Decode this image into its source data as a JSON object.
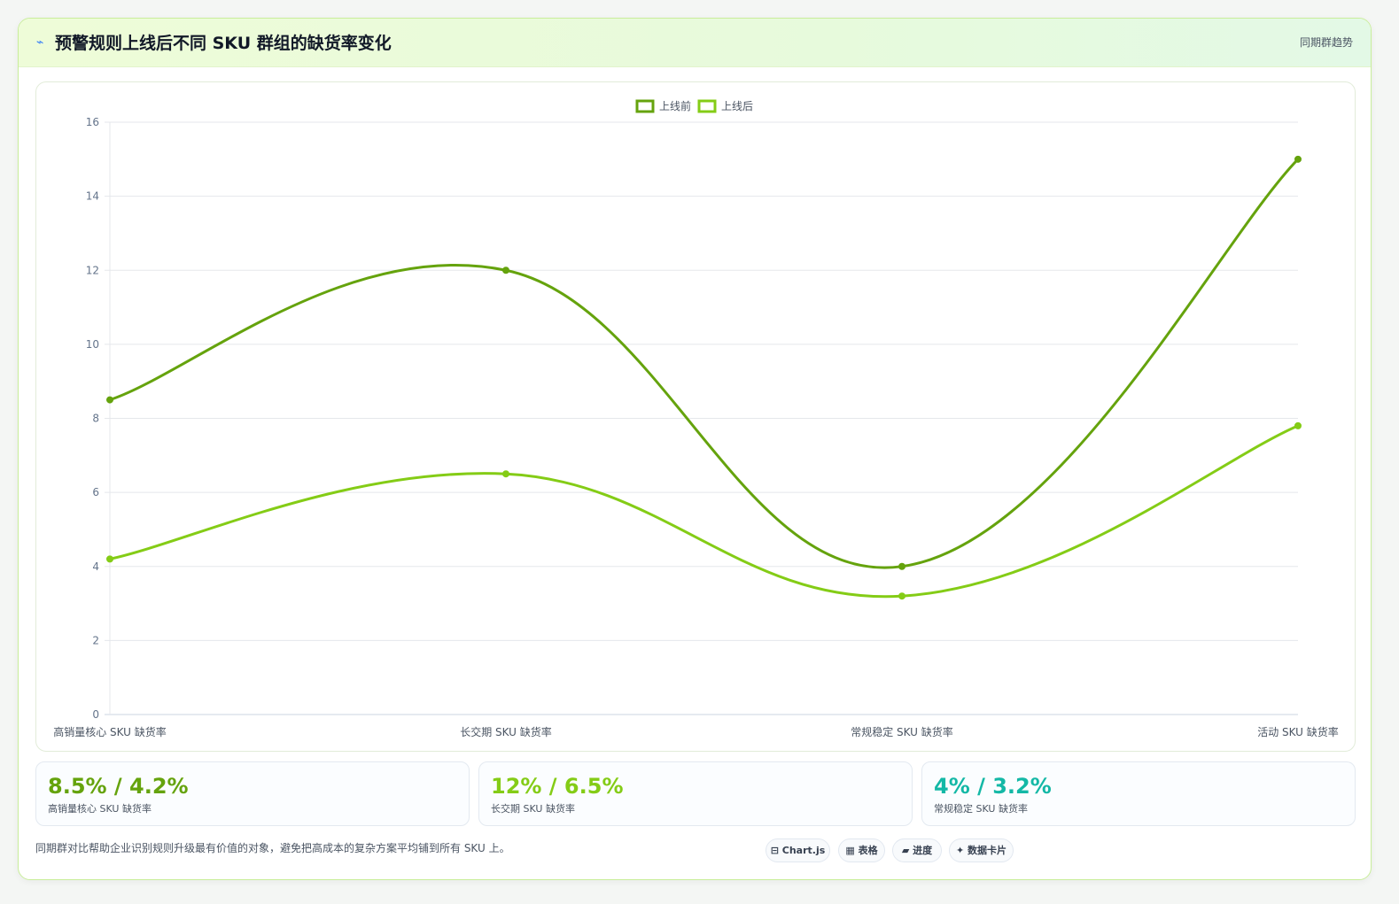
{
  "header": {
    "icon": "⌁",
    "title": "预警规则上线后不同 SKU 群组的缺货率变化",
    "tag": "同期群趋势"
  },
  "chart_data": {
    "type": "line",
    "categories": [
      "高销量核心 SKU 缺货率",
      "长交期 SKU 缺货率",
      "常规稳定 SKU 缺货率",
      "活动 SKU 缺货率"
    ],
    "series": [
      {
        "name": "上线前",
        "values": [
          8.5,
          12,
          4,
          15
        ],
        "color": "#65a30d"
      },
      {
        "name": "上线后",
        "values": [
          4.2,
          6.5,
          3.2,
          7.8
        ],
        "color": "#84cc16"
      }
    ],
    "ylim": [
      0,
      16
    ],
    "yticks": [
      "0",
      "2",
      "4",
      "6",
      "8",
      "10",
      "12",
      "14",
      "16"
    ],
    "grid": true,
    "legend": "top-center",
    "smooth": true
  },
  "stats": [
    {
      "value": "8.5% / 4.2%",
      "label": "高销量核心 SKU 缺货率",
      "color": "#65a30d"
    },
    {
      "value": "12% / 6.5%",
      "label": "长交期 SKU 缺货率",
      "color": "#84cc16"
    },
    {
      "value": "4% / 3.2%",
      "label": "常规稳定 SKU 缺货率",
      "color": "#14b8a6"
    }
  ],
  "footer": {
    "note": "同期群对比帮助企业识别规则升级最有价值的对象，避免把高成本的复杂方案平均铺到所有 SKU 上。",
    "chips": [
      {
        "label": "⊟ Chart.js",
        "icon": "chart-icon"
      },
      {
        "label": "▦ 表格",
        "icon": "table-icon"
      },
      {
        "label": "▰ 进度",
        "icon": "progress-icon"
      },
      {
        "label": "✦ 数据卡片",
        "icon": "card-icon"
      }
    ]
  }
}
